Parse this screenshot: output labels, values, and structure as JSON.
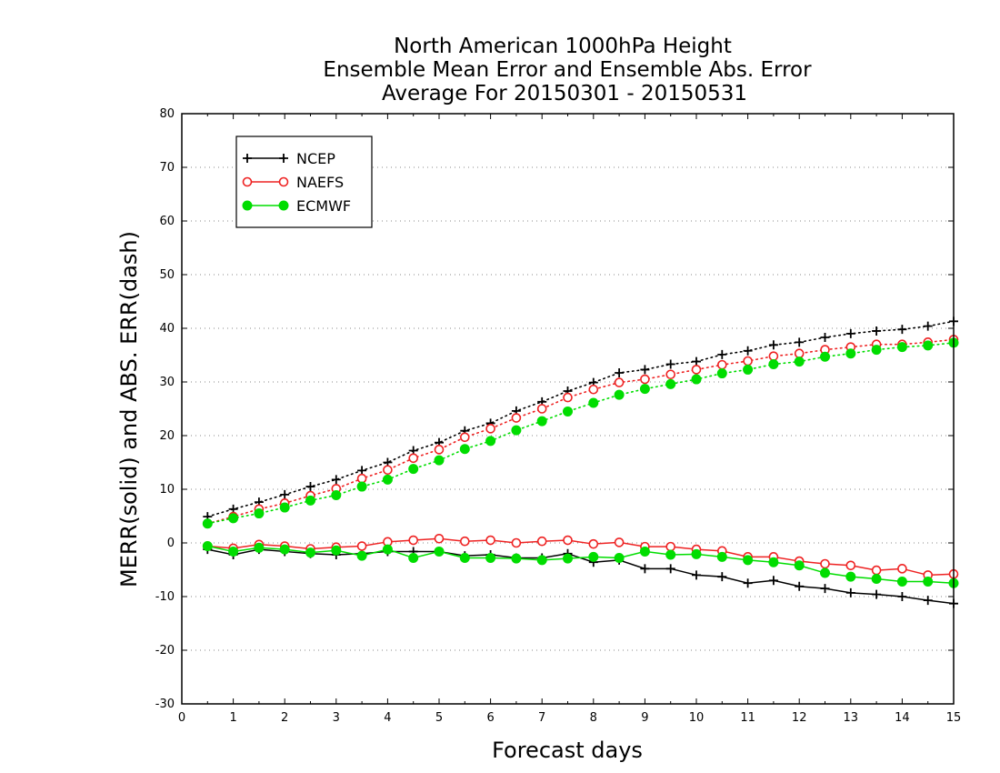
{
  "chart_data": {
    "type": "line",
    "title_lines": [
      "North American 1000hPa Height",
      "Ensemble Mean Error and Ensemble Abs. Error",
      "Average For 20150301 - 20150531"
    ],
    "xlabel": "Forecast days",
    "ylabel": "MERR(solid) and ABS. ERR(dash)",
    "xlim": [
      0,
      15
    ],
    "ylim": [
      -30,
      80
    ],
    "x_ticks": [
      "0",
      "1",
      "2",
      "3",
      "4",
      "5",
      "6",
      "7",
      "8",
      "9",
      "10",
      "11",
      "12",
      "13",
      "14",
      "15"
    ],
    "y_ticks": [
      "-30",
      "-20",
      "-10",
      "0",
      "10",
      "20",
      "30",
      "40",
      "50",
      "60",
      "70",
      "80"
    ],
    "grid": "horizontal dotted",
    "legend_position": "top-left",
    "x": [
      0.5,
      1,
      1.5,
      2,
      2.5,
      3,
      3.5,
      4,
      4.5,
      5,
      5.5,
      6,
      6.5,
      7,
      7.5,
      8,
      8.5,
      9,
      9.5,
      10,
      10.5,
      11,
      11.5,
      12,
      12.5,
      13,
      13.5,
      14,
      14.5,
      15
    ],
    "series": [
      {
        "name": "NCEP",
        "color": "#000000",
        "marker": "plus",
        "merr": [
          -1.2,
          -2.2,
          -1.2,
          -1.6,
          -2.0,
          -2.2,
          -2.0,
          -1.6,
          -1.6,
          -1.6,
          -2.4,
          -2.2,
          -2.8,
          -2.8,
          -2.0,
          -3.6,
          -3.2,
          -4.8,
          -4.8,
          -6.0,
          -6.3,
          -7.5,
          -7.0,
          -8.1,
          -8.5,
          -9.3,
          -9.6,
          -10.0,
          -10.7,
          -11.3
        ],
        "abs_err": [
          4.9,
          6.3,
          7.6,
          9.0,
          10.5,
          11.8,
          13.5,
          15.0,
          17.2,
          18.7,
          20.9,
          22.3,
          24.6,
          26.3,
          28.3,
          29.9,
          31.7,
          32.3,
          33.3,
          33.8,
          35.1,
          35.8,
          36.9,
          37.4,
          38.3,
          39.0,
          39.5,
          39.8,
          40.4,
          41.3
        ]
      },
      {
        "name": "NAEFS",
        "color": "#ee2222",
        "marker": "open-circle",
        "merr": [
          -0.6,
          -1.0,
          -0.3,
          -0.6,
          -1.1,
          -0.8,
          -0.6,
          0.2,
          0.5,
          0.8,
          0.3,
          0.5,
          0.0,
          0.3,
          0.5,
          -0.2,
          0.1,
          -0.7,
          -0.7,
          -1.2,
          -1.5,
          -2.6,
          -2.6,
          -3.4,
          -3.9,
          -4.2,
          -5.1,
          -4.8,
          -6.0,
          -5.8
        ],
        "abs_err": [
          3.6,
          4.9,
          6.3,
          7.4,
          8.8,
          10.1,
          12.0,
          13.6,
          15.8,
          17.4,
          19.7,
          21.3,
          23.3,
          25.0,
          27.1,
          28.6,
          29.9,
          30.5,
          31.4,
          32.3,
          33.2,
          33.9,
          34.8,
          35.3,
          36.0,
          36.5,
          37.0,
          37.0,
          37.4,
          37.9
        ]
      },
      {
        "name": "ECMWF",
        "color": "#00dd00",
        "marker": "filled-circle",
        "merr": [
          -0.6,
          -1.6,
          -0.9,
          -1.2,
          -1.8,
          -1.4,
          -2.4,
          -1.2,
          -2.8,
          -1.6,
          -2.8,
          -2.8,
          -2.9,
          -3.2,
          -2.9,
          -2.6,
          -2.8,
          -1.6,
          -2.2,
          -2.1,
          -2.6,
          -3.2,
          -3.6,
          -4.2,
          -5.6,
          -6.3,
          -6.7,
          -7.2,
          -7.2,
          -7.5
        ],
        "abs_err": [
          3.6,
          4.6,
          5.5,
          6.6,
          7.9,
          8.9,
          10.5,
          11.8,
          13.8,
          15.4,
          17.5,
          19.0,
          21.0,
          22.7,
          24.5,
          26.1,
          27.6,
          28.7,
          29.6,
          30.5,
          31.6,
          32.3,
          33.3,
          33.8,
          34.7,
          35.3,
          36.0,
          36.5,
          36.8,
          37.3
        ]
      }
    ]
  }
}
